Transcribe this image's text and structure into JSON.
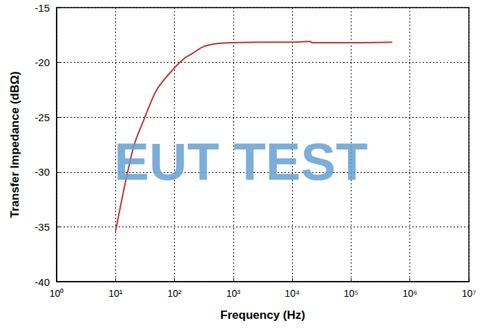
{
  "chart_data": {
    "type": "line",
    "x_label": "Frequency (Hz)",
    "y_label": "Transfer Impedance (dBΩ)",
    "annotations": [
      "EUT TEST"
    ],
    "log": "x",
    "grid": true,
    "color": "#c0302a",
    "x": [
      10,
      20,
      30,
      50,
      100,
      150,
      200,
      300,
      500,
      1000,
      3000,
      10000,
      20000,
      22000,
      100000,
      500000
    ],
    "values": [
      -35.4,
      -27.8,
      -25.3,
      -22.5,
      -20.5,
      -19.6,
      -19.2,
      -18.6,
      -18.3,
      -18.2,
      -18.15,
      -18.15,
      -18.1,
      -18.2,
      -18.2,
      -18.15
    ],
    "xlim": [
      1,
      10000000
    ],
    "xticks": [
      {
        "value": 1,
        "label": "10⁰"
      },
      {
        "value": 10,
        "label": "10¹"
      },
      {
        "value": 100,
        "label": "10²"
      },
      {
        "value": 1000,
        "label": "10³"
      },
      {
        "value": 10000,
        "label": "10⁴"
      },
      {
        "value": 100000,
        "label": "10⁵"
      },
      {
        "value": 1000000,
        "label": "10⁶"
      },
      {
        "value": 10000000,
        "label": "10⁷"
      }
    ],
    "ylim": [
      -40,
      -15
    ],
    "yticks": [
      -40,
      -35,
      -30,
      -25,
      -20,
      -15
    ]
  }
}
